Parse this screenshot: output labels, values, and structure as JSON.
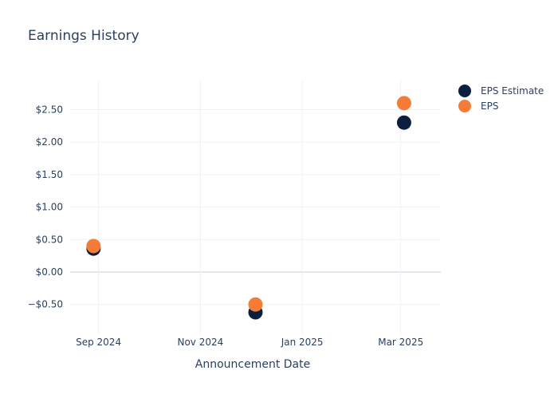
{
  "chart_data": {
    "type": "scatter",
    "title": "Earnings History",
    "xlabel": "Announcement Date",
    "ylabel": "",
    "x_axis_type": "date",
    "x_range": [
      "2024-08-15",
      "2025-03-25"
    ],
    "y_range": [
      -0.97,
      2.96
    ],
    "x_ticks": [
      {
        "date": "2024-09-01",
        "label": "Sep 2024"
      },
      {
        "date": "2024-11-01",
        "label": "Nov 2024"
      },
      {
        "date": "2025-01-01",
        "label": "Jan 2025"
      },
      {
        "date": "2025-03-01",
        "label": "Mar 2025"
      }
    ],
    "y_ticks": [
      {
        "value": -0.5,
        "label": "−$0.50"
      },
      {
        "value": 0,
        "label": "$0.00"
      },
      {
        "value": 0.5,
        "label": "$0.50"
      },
      {
        "value": 1,
        "label": "$1.00"
      },
      {
        "value": 1.5,
        "label": "$1.50"
      },
      {
        "value": 2,
        "label": "$2.00"
      },
      {
        "value": 2.5,
        "label": "$2.50"
      }
    ],
    "grid": true,
    "legend_position": "top-right",
    "series": [
      {
        "name": "EPS Estimate",
        "color": "#0d1f3f",
        "points": [
          {
            "x": "2024-08-29",
            "y": 0.36
          },
          {
            "x": "2024-12-04",
            "y": -0.62
          },
          {
            "x": "2025-03-03",
            "y": 2.3
          }
        ]
      },
      {
        "name": "EPS",
        "color": "#f47c36",
        "points": [
          {
            "x": "2024-08-29",
            "y": 0.4
          },
          {
            "x": "2024-12-04",
            "y": -0.5
          },
          {
            "x": "2025-03-03",
            "y": 2.6
          }
        ]
      }
    ]
  }
}
